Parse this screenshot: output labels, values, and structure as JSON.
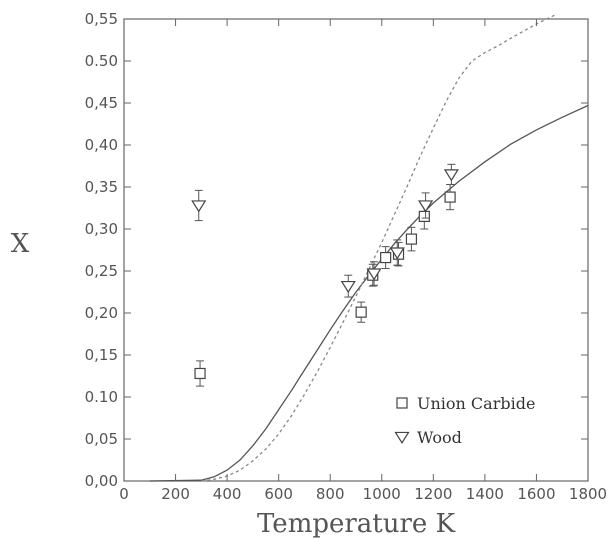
{
  "chart_data": {
    "type": "scatter",
    "xlabel": "Temperature K",
    "ylabel": "X",
    "xlim": [
      0,
      1800
    ],
    "ylim": [
      0,
      0.55
    ],
    "xticks": [
      "0",
      "200",
      "400",
      "600",
      "800",
      "1000",
      "1200",
      "1400",
      "1600",
      "1800"
    ],
    "yticks": [
      "0,00",
      "0,05",
      "0.10",
      "0,15",
      "0,20",
      "0,25",
      "0,30",
      "0,35",
      "0,40",
      "0,45",
      "0.50",
      "0,55"
    ],
    "grid": false,
    "legend_position": "bottom-right",
    "series": [
      {
        "name": "Union Carbide",
        "marker": "square",
        "points": [
          {
            "x": 295,
            "y": 0.128,
            "err": 0.015
          },
          {
            "x": 920,
            "y": 0.201,
            "err": 0.012
          },
          {
            "x": 965,
            "y": 0.245,
            "err": 0.013
          },
          {
            "x": 1015,
            "y": 0.266,
            "err": 0.013
          },
          {
            "x": 1065,
            "y": 0.27,
            "err": 0.014
          },
          {
            "x": 1115,
            "y": 0.288,
            "err": 0.014
          },
          {
            "x": 1165,
            "y": 0.315,
            "err": 0.015
          },
          {
            "x": 1265,
            "y": 0.338,
            "err": 0.015
          }
        ]
      },
      {
        "name": "Wood",
        "marker": "triangle-down",
        "points": [
          {
            "x": 290,
            "y": 0.328,
            "err": 0.018
          },
          {
            "x": 870,
            "y": 0.232,
            "err": 0.013
          },
          {
            "x": 970,
            "y": 0.247,
            "err": 0.014
          },
          {
            "x": 1060,
            "y": 0.272,
            "err": 0.015
          },
          {
            "x": 1170,
            "y": 0.328,
            "err": 0.015
          },
          {
            "x": 1270,
            "y": 0.365,
            "err": 0.012
          }
        ]
      }
    ],
    "curves": [
      {
        "style": "solid",
        "points": [
          [
            100,
            0
          ],
          [
            300,
            0.001
          ],
          [
            350,
            0.005
          ],
          [
            400,
            0.013
          ],
          [
            450,
            0.025
          ],
          [
            500,
            0.042
          ],
          [
            550,
            0.062
          ],
          [
            600,
            0.085
          ],
          [
            650,
            0.108
          ],
          [
            700,
            0.132
          ],
          [
            750,
            0.156
          ],
          [
            800,
            0.18
          ],
          [
            850,
            0.203
          ],
          [
            900,
            0.225
          ],
          [
            950,
            0.245
          ],
          [
            1000,
            0.264
          ],
          [
            1050,
            0.283
          ],
          [
            1100,
            0.3
          ],
          [
            1150,
            0.316
          ],
          [
            1200,
            0.331
          ],
          [
            1300,
            0.357
          ],
          [
            1400,
            0.38
          ],
          [
            1500,
            0.401
          ],
          [
            1600,
            0.418
          ],
          [
            1700,
            0.433
          ],
          [
            1800,
            0.447
          ]
        ]
      },
      {
        "style": "dashed",
        "points": [
          [
            300,
            0
          ],
          [
            350,
            0.002
          ],
          [
            400,
            0.006
          ],
          [
            450,
            0.013
          ],
          [
            500,
            0.024
          ],
          [
            550,
            0.038
          ],
          [
            600,
            0.056
          ],
          [
            650,
            0.078
          ],
          [
            700,
            0.103
          ],
          [
            750,
            0.13
          ],
          [
            800,
            0.159
          ],
          [
            850,
            0.189
          ],
          [
            900,
            0.22
          ],
          [
            950,
            0.252
          ],
          [
            1000,
            0.284
          ],
          [
            1050,
            0.318
          ],
          [
            1100,
            0.352
          ],
          [
            1150,
            0.387
          ],
          [
            1200,
            0.42
          ],
          [
            1250,
            0.452
          ],
          [
            1300,
            0.48
          ],
          [
            1350,
            0.5
          ],
          [
            1400,
            0.51
          ],
          [
            1450,
            0.518
          ],
          [
            1500,
            0.527
          ],
          [
            1600,
            0.544
          ],
          [
            1680,
            0.556
          ]
        ]
      }
    ]
  }
}
